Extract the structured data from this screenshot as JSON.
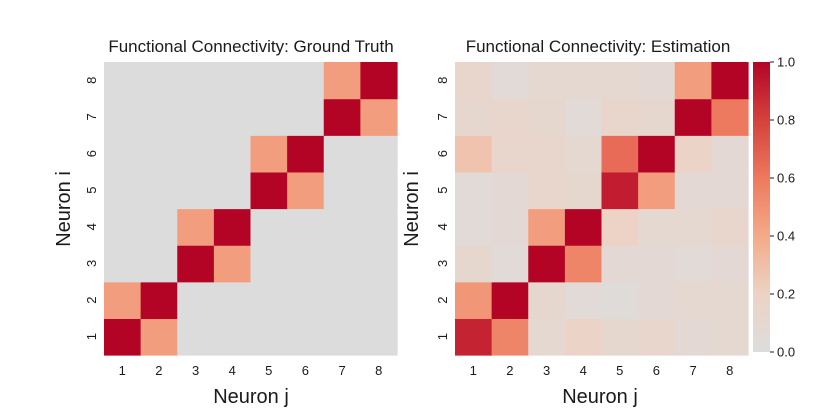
{
  "chart_data": [
    {
      "type": "heatmap",
      "title": "Functional Connectivity: Ground Truth",
      "xlabel": "Neuron j",
      "ylabel": "Neuron i",
      "x_ticks": [
        "1",
        "2",
        "3",
        "4",
        "5",
        "6",
        "7",
        "8"
      ],
      "y_ticks": [
        "1",
        "2",
        "3",
        "4",
        "5",
        "6",
        "7",
        "8"
      ],
      "rows_bottom_to_top": [
        [
          1.0,
          0.45,
          0.0,
          0.0,
          0.0,
          0.0,
          0.0,
          0.0
        ],
        [
          0.45,
          1.0,
          0.0,
          0.0,
          0.0,
          0.0,
          0.0,
          0.0
        ],
        [
          0.0,
          0.0,
          1.0,
          0.45,
          0.0,
          0.0,
          0.0,
          0.0
        ],
        [
          0.0,
          0.0,
          0.45,
          1.0,
          0.0,
          0.0,
          0.0,
          0.0
        ],
        [
          0.0,
          0.0,
          0.0,
          0.0,
          1.0,
          0.45,
          0.0,
          0.0
        ],
        [
          0.0,
          0.0,
          0.0,
          0.0,
          0.45,
          1.0,
          0.0,
          0.0
        ],
        [
          0.0,
          0.0,
          0.0,
          0.0,
          0.0,
          0.0,
          1.0,
          0.45
        ],
        [
          0.0,
          0.0,
          0.0,
          0.0,
          0.0,
          0.0,
          0.45,
          1.0
        ]
      ]
    },
    {
      "type": "heatmap",
      "title": "Functional Connectivity: Estimation",
      "xlabel": "Neuron j",
      "ylabel": "Neuron i",
      "x_ticks": [
        "1",
        "2",
        "3",
        "4",
        "5",
        "6",
        "7",
        "8"
      ],
      "y_ticks": [
        "1",
        "2",
        "3",
        "4",
        "5",
        "6",
        "7",
        "8"
      ],
      "rows_bottom_to_top": [
        [
          0.9,
          0.55,
          0.1,
          0.18,
          0.12,
          0.15,
          0.08,
          0.1
        ],
        [
          0.48,
          1.0,
          0.12,
          0.05,
          0.03,
          0.08,
          0.1,
          0.1
        ],
        [
          0.12,
          0.05,
          1.0,
          0.55,
          0.08,
          0.08,
          0.05,
          0.08
        ],
        [
          0.05,
          0.08,
          0.45,
          1.0,
          0.2,
          0.1,
          0.1,
          0.15
        ],
        [
          0.05,
          0.08,
          0.15,
          0.12,
          0.92,
          0.45,
          0.08,
          0.08
        ],
        [
          0.28,
          0.15,
          0.15,
          0.1,
          0.65,
          1.0,
          0.18,
          0.08
        ],
        [
          0.12,
          0.15,
          0.12,
          0.05,
          0.15,
          0.12,
          1.0,
          0.6
        ],
        [
          0.15,
          0.05,
          0.1,
          0.1,
          0.1,
          0.08,
          0.45,
          1.0
        ]
      ]
    }
  ],
  "colorbar": {
    "min": 0.0,
    "max": 1.0,
    "ticks": [
      "0.0",
      "0.2",
      "0.4",
      "0.6",
      "0.8",
      "1.0"
    ],
    "colormap": "coolwarm (white-gray to red)",
    "low_color": "#dddcdc",
    "high_color": "#b40426"
  }
}
